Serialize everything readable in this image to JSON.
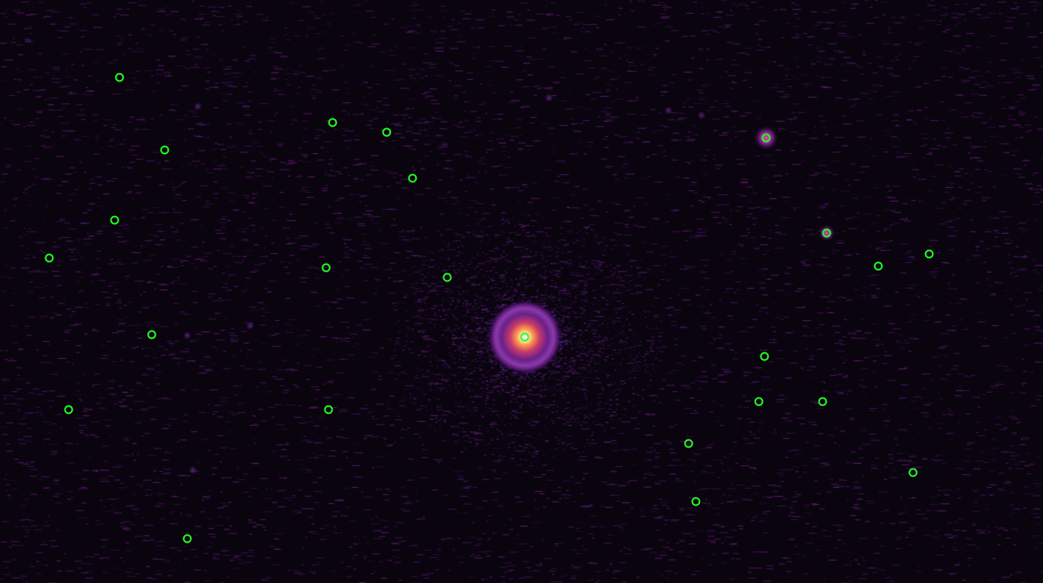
{
  "image": {
    "description_kind": "astronomical-frame",
    "colormap": "magma",
    "background_color": "#0a040f",
    "noise_color": "#5a1f8a",
    "marker_color": "#22ff22",
    "marker_style": "circle"
  },
  "markers": [
    {
      "id": "m1"
    },
    {
      "id": "m2"
    },
    {
      "id": "m3"
    },
    {
      "id": "m4"
    },
    {
      "id": "m5"
    },
    {
      "id": "m6"
    },
    {
      "id": "m7"
    },
    {
      "id": "m8"
    },
    {
      "id": "m9"
    },
    {
      "id": "m10"
    },
    {
      "id": "m11"
    },
    {
      "id": "m12"
    },
    {
      "id": "m13"
    },
    {
      "id": "m14"
    },
    {
      "id": "m15"
    },
    {
      "id": "m16"
    },
    {
      "id": "m17"
    },
    {
      "id": "m18"
    },
    {
      "id": "m19"
    },
    {
      "id": "m20"
    },
    {
      "id": "m21"
    },
    {
      "id": "m22"
    },
    {
      "id": "m23"
    },
    {
      "id": "m24"
    }
  ]
}
